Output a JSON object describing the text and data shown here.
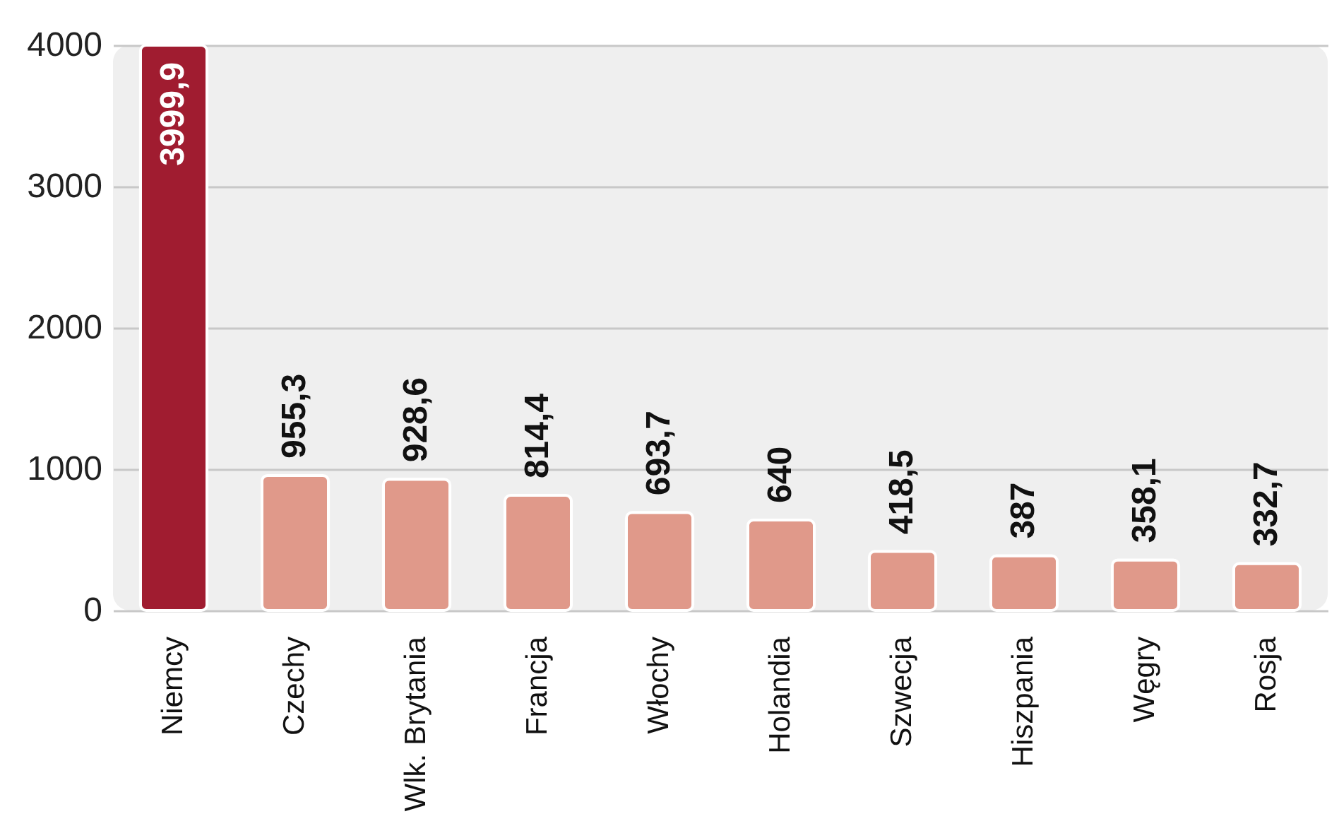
{
  "chart_data": {
    "type": "bar",
    "categories": [
      "Niemcy",
      "Czechy",
      "Wlk. Brytania",
      "Francja",
      "Włochy",
      "Holandia",
      "Szwecja",
      "Hiszpania",
      "Węgry",
      "Rosja"
    ],
    "values": [
      3999.9,
      955.3,
      928.6,
      814.4,
      693.7,
      640,
      418.5,
      387,
      358.1,
      332.7
    ],
    "colors": [
      "#a01c30",
      "#e0998a",
      "#e0998a",
      "#e0998a",
      "#e0998a",
      "#e0998a",
      "#e0998a",
      "#e0998a",
      "#e0998a",
      "#e0998a"
    ],
    "value_labels": [
      "3999,9",
      "955,3",
      "928,6",
      "814,4",
      "693,7",
      "640",
      "418,5",
      "387",
      "358,1",
      "332,7"
    ],
    "ylim": [
      0,
      4000
    ],
    "yticks": [
      0,
      1000,
      2000,
      3000,
      4000
    ],
    "grid": "y"
  }
}
